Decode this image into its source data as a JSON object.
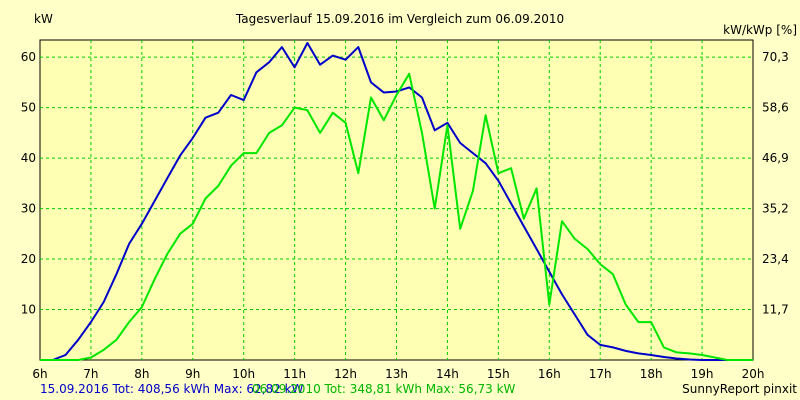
{
  "chart_data": {
    "type": "line",
    "title": "Tagesverlauf 15.09.2016 im Vergleich zum 06.09.2010",
    "ylabel_left": "kW",
    "ylabel_right": "kW/kWp [%]",
    "x_ticks": [
      "6h",
      "7h",
      "8h",
      "9h",
      "10h",
      "11h",
      "12h",
      "13h",
      "14h",
      "15h",
      "16h",
      "17h",
      "18h",
      "19h",
      "20h"
    ],
    "y_left_ticks": [
      "10",
      "20",
      "30",
      "40",
      "50",
      "60"
    ],
    "y_right_ticks": [
      "11,7",
      "23,4",
      "35,2",
      "46,9",
      "58,6",
      "70,3"
    ],
    "xlim": [
      6,
      20
    ],
    "ylim": [
      0,
      63.4
    ],
    "grid": true,
    "series": [
      {
        "name": "15.09.2016",
        "color": "#0000c8",
        "x": [
          6.0,
          6.25,
          6.5,
          6.75,
          7.0,
          7.25,
          7.5,
          7.75,
          8.0,
          8.25,
          8.5,
          8.75,
          9.0,
          9.25,
          9.5,
          9.75,
          10.0,
          10.25,
          10.5,
          10.75,
          11.0,
          11.25,
          11.5,
          11.75,
          12.0,
          12.25,
          12.5,
          12.75,
          13.0,
          13.25,
          13.5,
          13.75,
          14.0,
          14.25,
          14.5,
          14.75,
          15.0,
          15.25,
          15.5,
          15.75,
          16.0,
          16.25,
          16.5,
          16.75,
          17.0,
          17.25,
          17.5,
          17.75,
          18.0,
          18.25,
          18.5,
          18.75,
          19.0,
          19.25,
          19.5,
          19.75,
          20.0
        ],
        "values": [
          0,
          0,
          1,
          4,
          7.5,
          11.5,
          17,
          23,
          27,
          31.5,
          36,
          40.5,
          44,
          48,
          49,
          52.5,
          51.5,
          57,
          59,
          62,
          58,
          62.8,
          58.5,
          60.3,
          59.5,
          62,
          55,
          53,
          53.2,
          54,
          52,
          45.5,
          47,
          43,
          41,
          39,
          35.5,
          31,
          26.5,
          22,
          17.5,
          13,
          9,
          5,
          3,
          2.5,
          1.8,
          1.3,
          1,
          0.6,
          0.3,
          0.1,
          0,
          0,
          0,
          0,
          0
        ]
      },
      {
        "name": "06.09.2010",
        "color": "#00e600",
        "x": [
          6.0,
          6.25,
          6.5,
          6.75,
          7.0,
          7.25,
          7.5,
          7.75,
          8.0,
          8.25,
          8.5,
          8.75,
          9.0,
          9.25,
          9.5,
          9.75,
          10.0,
          10.25,
          10.5,
          10.75,
          11.0,
          11.25,
          11.5,
          11.75,
          12.0,
          12.25,
          12.5,
          12.75,
          13.0,
          13.25,
          13.5,
          13.75,
          14.0,
          14.25,
          14.5,
          14.75,
          15.0,
          15.25,
          15.5,
          15.75,
          16.0,
          16.25,
          16.5,
          16.75,
          17.0,
          17.25,
          17.5,
          17.75,
          18.0,
          18.25,
          18.5,
          18.75,
          19.0,
          19.25,
          19.5,
          19.75,
          20.0
        ],
        "values": [
          0,
          0,
          0,
          0,
          0.5,
          2,
          4,
          7.5,
          10.5,
          16,
          21,
          25,
          27,
          32,
          34.5,
          38.5,
          41,
          41,
          45,
          46.5,
          50,
          49.5,
          45,
          49,
          47,
          37,
          52,
          47.5,
          52.5,
          56.7,
          45,
          30,
          46.5,
          26,
          33.5,
          48.5,
          37,
          38,
          28,
          34,
          11,
          27.5,
          24,
          22,
          19,
          17,
          11,
          7.5,
          7.5,
          2.5,
          1.5,
          1.3,
          1,
          0.5,
          0,
          0,
          0
        ]
      }
    ]
  },
  "footer": {
    "legend_series1": "15.09.2016 Tot: 408,56 kWh Max: 62,82 kW",
    "legend_series2": "06.09.2010 Tot: 348,81 kWh Max: 56,73 kW",
    "credit": "SunnyReport pinxit"
  },
  "colors": {
    "background": "#ffffc8",
    "plot_background": "#ffffb4",
    "grid": "#00cc00",
    "series1": "#0000c8",
    "series2": "#00e600"
  }
}
